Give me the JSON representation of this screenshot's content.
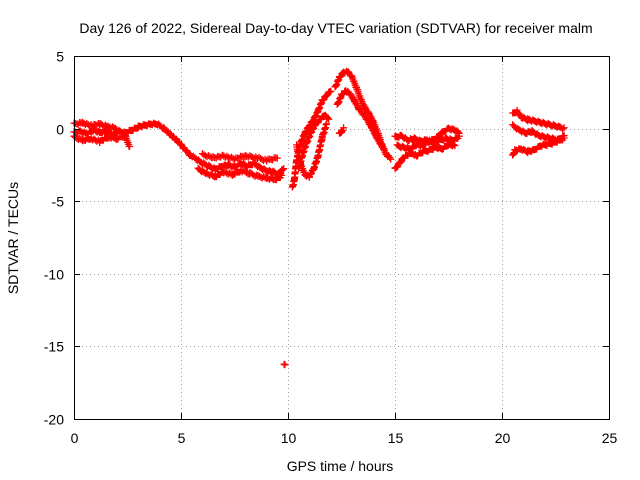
{
  "chart_data": {
    "type": "scatter",
    "title": "Day 126 of 2022, Sidereal Day-to-day VTEC variation (SDTVAR) for receiver malm",
    "xlabel": "GPS time / hours",
    "ylabel": "SDTVAR / TECUs",
    "xlim": [
      0,
      25
    ],
    "ylim": [
      -20,
      5
    ],
    "xticks": [
      0,
      5,
      10,
      15,
      20,
      25
    ],
    "yticks": [
      5,
      0,
      -5,
      -10,
      -15,
      -20
    ],
    "xtick_labels": [
      "0",
      "5",
      "10",
      "15",
      "20",
      "25"
    ],
    "ytick_labels": [
      "5",
      "0",
      "-5",
      "-10",
      "-15",
      "-20"
    ],
    "grid": true,
    "marker": "plus",
    "color": "#ff0000",
    "series": [
      {
        "name": "malm",
        "segments": [
          [
            [
              0.0,
              -0.3
            ],
            [
              0.3,
              -0.2
            ],
            [
              0.6,
              -0.35
            ],
            [
              0.9,
              -0.1
            ],
            [
              1.2,
              -0.3
            ],
            [
              1.5,
              -0.2
            ],
            [
              1.8,
              -0.4
            ],
            [
              2.1,
              -0.2
            ],
            [
              2.4,
              -0.3
            ],
            [
              2.7,
              -0.1
            ],
            [
              3.0,
              0.1
            ],
            [
              3.3,
              0.2
            ],
            [
              3.6,
              0.3
            ],
            [
              3.9,
              0.3
            ],
            [
              4.2,
              0.0
            ],
            [
              4.5,
              -0.4
            ],
            [
              4.8,
              -0.8
            ],
            [
              5.1,
              -1.3
            ],
            [
              5.4,
              -1.8
            ],
            [
              5.7,
              -2.1
            ],
            [
              6.0,
              -2.4
            ],
            [
              6.3,
              -2.6
            ],
            [
              6.6,
              -2.8
            ],
            [
              6.9,
              -2.6
            ],
            [
              7.2,
              -2.5
            ],
            [
              7.5,
              -2.7
            ],
            [
              7.8,
              -2.4
            ],
            [
              8.1,
              -2.6
            ],
            [
              8.4,
              -2.4
            ],
            [
              8.7,
              -2.7
            ],
            [
              9.0,
              -2.9
            ],
            [
              9.3,
              -3.0
            ],
            [
              9.6,
              -3.2
            ],
            [
              9.8,
              -2.7
            ]
          ],
          [
            [
              0.0,
              -0.6
            ],
            [
              0.4,
              -0.8
            ],
            [
              0.8,
              -0.7
            ],
            [
              1.2,
              -0.9
            ],
            [
              1.6,
              -0.6
            ],
            [
              2.0,
              -0.7
            ],
            [
              2.4,
              -0.5
            ],
            [
              2.6,
              -1.3
            ]
          ],
          [
            [
              0.0,
              0.3
            ],
            [
              0.4,
              0.4
            ],
            [
              0.8,
              0.2
            ],
            [
              1.2,
              0.3
            ],
            [
              1.6,
              0.1
            ],
            [
              2.0,
              0.0
            ]
          ],
          [
            [
              5.8,
              -2.8
            ],
            [
              6.2,
              -3.1
            ],
            [
              6.6,
              -3.3
            ],
            [
              7.0,
              -3.0
            ],
            [
              7.4,
              -3.2
            ],
            [
              7.8,
              -2.9
            ],
            [
              8.2,
              -3.1
            ],
            [
              8.6,
              -3.3
            ],
            [
              9.0,
              -3.4
            ],
            [
              9.4,
              -3.5
            ],
            [
              9.7,
              -3.3
            ]
          ],
          [
            [
              6.0,
              -1.8
            ],
            [
              6.5,
              -2.0
            ],
            [
              7.0,
              -1.9
            ],
            [
              7.5,
              -2.1
            ],
            [
              8.0,
              -1.9
            ],
            [
              8.5,
              -2.0
            ],
            [
              9.0,
              -2.2
            ],
            [
              9.5,
              -2.0
            ]
          ],
          [
            [
              9.82,
              -16.3
            ],
            [
              9.86,
              -16.3
            ]
          ],
          [
            [
              10.2,
              -4.1
            ],
            [
              10.3,
              -3.5
            ],
            [
              10.4,
              -2.2
            ],
            [
              10.6,
              -1.0
            ],
            [
              10.8,
              -0.3
            ],
            [
              11.0,
              0.2
            ],
            [
              11.2,
              0.6
            ],
            [
              11.4,
              1.2
            ],
            [
              11.6,
              1.9
            ],
            [
              11.8,
              2.3
            ],
            [
              12.0,
              2.6
            ]
          ],
          [
            [
              10.5,
              -2.8
            ],
            [
              10.7,
              -1.7
            ],
            [
              10.9,
              -0.9
            ],
            [
              11.1,
              -0.2
            ],
            [
              11.3,
              0.3
            ],
            [
              11.5,
              0.6
            ],
            [
              11.7,
              0.9
            ],
            [
              11.9,
              0.7
            ]
          ],
          [
            [
              10.4,
              -1.2
            ],
            [
              10.6,
              -2.5
            ],
            [
              10.8,
              -3.2
            ],
            [
              11.0,
              -3.3
            ],
            [
              11.2,
              -2.8
            ],
            [
              11.4,
              -1.9
            ],
            [
              11.6,
              -0.6
            ],
            [
              11.8,
              0.3
            ]
          ],
          [
            [
              12.2,
              2.8
            ],
            [
              12.4,
              3.5
            ],
            [
              12.6,
              3.9
            ],
            [
              12.8,
              3.9
            ],
            [
              13.0,
              3.5
            ],
            [
              13.2,
              2.8
            ],
            [
              13.4,
              2.0
            ],
            [
              13.6,
              1.4
            ],
            [
              13.8,
              1.0
            ],
            [
              14.0,
              0.4
            ],
            [
              14.2,
              -0.3
            ],
            [
              14.4,
              -1.2
            ],
            [
              14.6,
              -1.8
            ],
            [
              14.8,
              -2.1
            ]
          ],
          [
            [
              12.3,
              1.6
            ],
            [
              12.5,
              2.3
            ],
            [
              12.7,
              2.6
            ],
            [
              12.9,
              2.4
            ],
            [
              13.1,
              1.9
            ],
            [
              13.3,
              1.4
            ],
            [
              13.5,
              1.0
            ],
            [
              13.7,
              0.6
            ],
            [
              13.9,
              0.1
            ],
            [
              14.1,
              -0.5
            ],
            [
              14.3,
              -1.0
            ],
            [
              14.5,
              -1.5
            ]
          ],
          [
            [
              12.4,
              -0.4
            ],
            [
              12.5,
              -0.2
            ],
            [
              12.6,
              0.0
            ]
          ],
          [
            [
              15.0,
              -0.6
            ],
            [
              15.3,
              -0.5
            ],
            [
              15.6,
              -0.8
            ],
            [
              15.9,
              -0.7
            ],
            [
              16.2,
              -0.9
            ],
            [
              16.5,
              -0.8
            ],
            [
              16.8,
              -1.0
            ],
            [
              17.1,
              -0.8
            ],
            [
              17.4,
              -0.7
            ],
            [
              17.7,
              -0.8
            ],
            [
              18.0,
              -0.6
            ]
          ],
          [
            [
              15.0,
              -2.8
            ],
            [
              15.2,
              -2.4
            ],
            [
              15.4,
              -2.0
            ],
            [
              15.6,
              -1.8
            ],
            [
              15.8,
              -1.7
            ],
            [
              16.0,
              -1.9
            ],
            [
              16.3,
              -1.6
            ],
            [
              16.6,
              -1.5
            ],
            [
              16.9,
              -1.3
            ],
            [
              17.2,
              -1.4
            ],
            [
              17.5,
              -1.1
            ],
            [
              17.8,
              -1.2
            ]
          ],
          [
            [
              15.1,
              -1.2
            ],
            [
              15.4,
              -1.3
            ],
            [
              15.7,
              -1.4
            ],
            [
              16.0,
              -1.1
            ],
            [
              16.3,
              -1.2
            ],
            [
              16.6,
              -0.9
            ],
            [
              16.9,
              -0.7
            ],
            [
              17.2,
              -0.3
            ],
            [
              17.5,
              0.0
            ],
            [
              17.8,
              -0.1
            ],
            [
              18.0,
              -0.3
            ]
          ],
          [
            [
              20.5,
              -1.9
            ],
            [
              20.6,
              -1.5
            ],
            [
              20.9,
              -1.4
            ],
            [
              21.2,
              -1.6
            ],
            [
              21.5,
              -1.5
            ],
            [
              21.8,
              -1.2
            ],
            [
              22.1,
              -1.1
            ],
            [
              22.4,
              -1.0
            ],
            [
              22.7,
              -0.8
            ],
            [
              22.9,
              -0.7
            ]
          ],
          [
            [
              20.5,
              1.0
            ],
            [
              20.7,
              1.2
            ],
            [
              20.9,
              0.8
            ],
            [
              21.2,
              0.6
            ],
            [
              21.5,
              0.5
            ],
            [
              21.8,
              0.4
            ],
            [
              22.1,
              0.3
            ],
            [
              22.4,
              0.2
            ],
            [
              22.7,
              0.1
            ],
            [
              22.9,
              0.0
            ]
          ],
          [
            [
              20.5,
              0.2
            ],
            [
              20.8,
              -0.1
            ],
            [
              21.1,
              -0.3
            ],
            [
              21.4,
              -0.2
            ],
            [
              21.7,
              -0.5
            ],
            [
              22.0,
              -0.6
            ],
            [
              22.3,
              -0.7
            ],
            [
              22.6,
              -0.8
            ],
            [
              22.9,
              -0.5
            ]
          ]
        ]
      }
    ]
  }
}
